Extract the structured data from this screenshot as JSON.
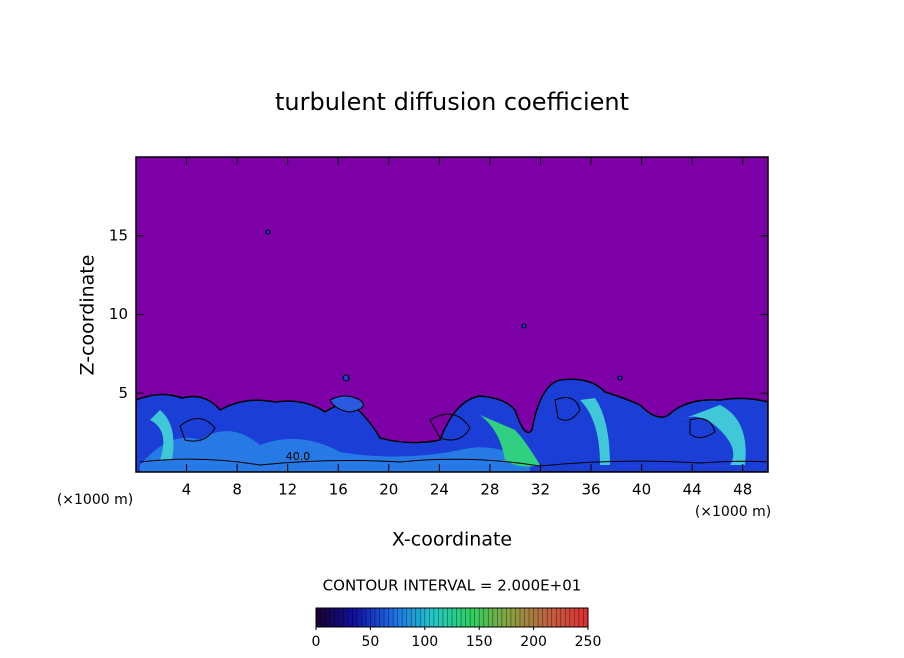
{
  "chart_data": {
    "type": "contour",
    "title": "turbulent diffusion coefficient",
    "x_label": "X-coordinate",
    "y_label": "Z-coordinate",
    "x_unit": "(×1000 m)",
    "y_unit": "(×1000 m)",
    "xlim": [
      0,
      50
    ],
    "xticks": [
      4,
      8,
      12,
      16,
      20,
      24,
      28,
      32,
      36,
      40,
      44,
      48
    ],
    "ylim": [
      0,
      20
    ],
    "yticks": [
      5,
      10,
      15
    ],
    "contour_interval": "CONTOUR INTERVAL = 2.000E+01",
    "contour_label": "40.0",
    "field_color": "#7d00a6",
    "colorbar": {
      "lim": [
        0,
        250
      ],
      "ticks": [
        0,
        50,
        100,
        150,
        200,
        250
      ],
      "colors": [
        "#1a0030",
        "#1010a0",
        "#1e6ee6",
        "#20c8c8",
        "#30d060",
        "#8ca040",
        "#c06040",
        "#e03030"
      ]
    }
  }
}
